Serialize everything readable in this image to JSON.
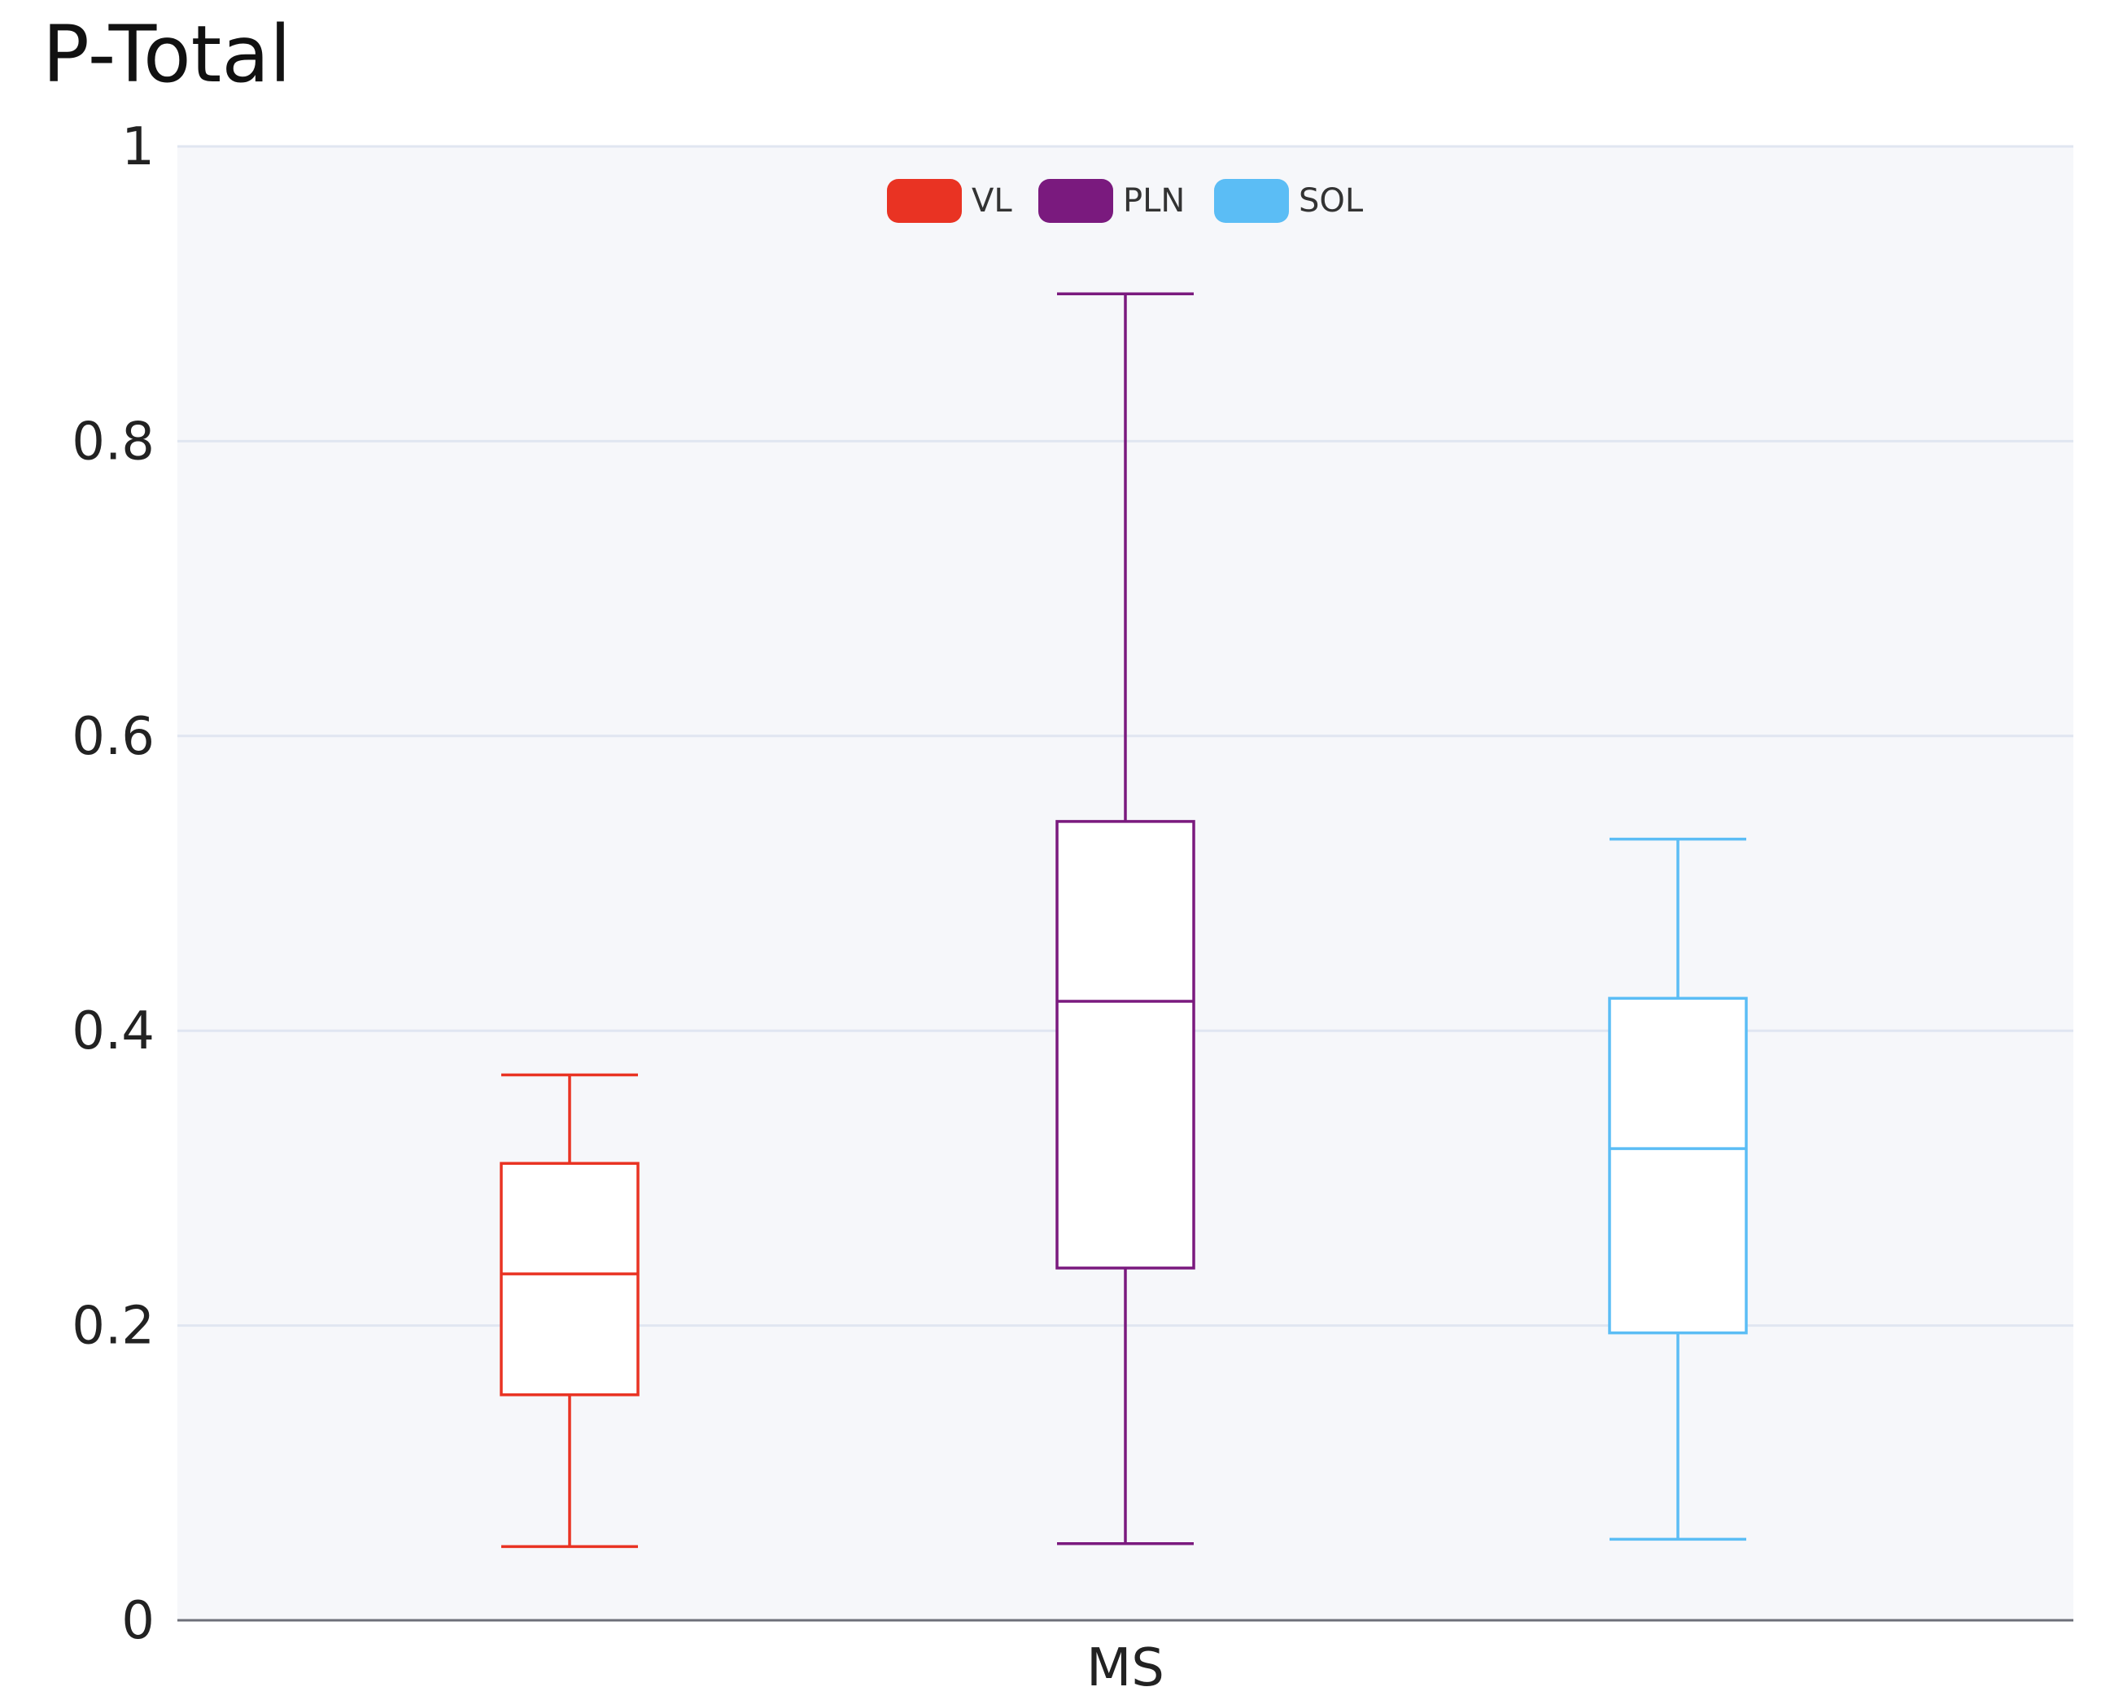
{
  "chart_data": {
    "type": "boxplot",
    "title": "P-Total",
    "xlabel": "",
    "ylabel": "",
    "categories": [
      "MS"
    ],
    "ylim": [
      0,
      1
    ],
    "yticks": [
      0,
      0.2,
      0.4,
      0.6,
      0.8,
      1
    ],
    "ytick_labels": [
      "0",
      "0.2",
      "0.4",
      "0.6",
      "0.8",
      "1"
    ],
    "grid": true,
    "legend_position": "top-center",
    "series": [
      {
        "name": "VL",
        "color": "#e93323",
        "min": 0.05,
        "q1": 0.153,
        "median": 0.235,
        "q3": 0.31,
        "max": 0.37
      },
      {
        "name": "PLN",
        "color": "#7a1a7e",
        "min": 0.052,
        "q1": 0.239,
        "median": 0.42,
        "q3": 0.542,
        "max": 0.9
      },
      {
        "name": "SOL",
        "color": "#5bbdf5",
        "min": 0.055,
        "q1": 0.195,
        "median": 0.32,
        "q3": 0.422,
        "max": 0.53
      }
    ]
  }
}
